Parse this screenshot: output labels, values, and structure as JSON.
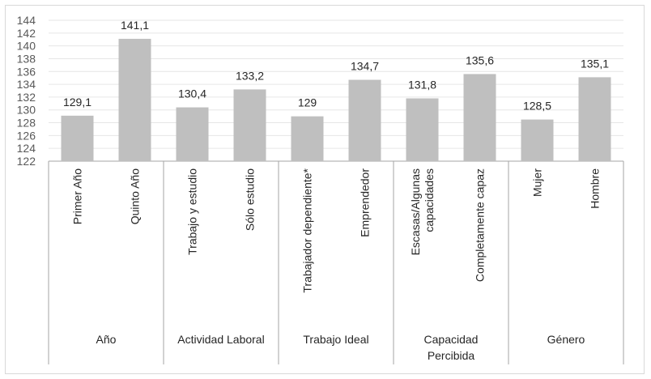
{
  "chart_data": {
    "type": "bar",
    "ylim": [
      122,
      144
    ],
    "y_ticks": [
      122,
      124,
      126,
      128,
      130,
      132,
      134,
      136,
      138,
      140,
      142,
      144
    ],
    "grid": true,
    "bar_color": "#bfbfbf",
    "groups": [
      {
        "name": "Año",
        "lines": [
          "Año"
        ],
        "categories": [
          {
            "label": [
              "Primer Año"
            ],
            "value": 129.1,
            "value_label": "129,1"
          },
          {
            "label": [
              "Quinto Año"
            ],
            "value": 141.1,
            "value_label": "141,1"
          }
        ]
      },
      {
        "name": "Actividad Laboral",
        "lines": [
          "Actividad Laboral"
        ],
        "categories": [
          {
            "label": [
              "Trabajo y estudio"
            ],
            "value": 130.4,
            "value_label": "130,4"
          },
          {
            "label": [
              "Sólo estudio"
            ],
            "value": 133.2,
            "value_label": "133,2"
          }
        ]
      },
      {
        "name": "Trabajo Ideal",
        "lines": [
          "Trabajo Ideal"
        ],
        "categories": [
          {
            "label": [
              "Trabajador dependiente*"
            ],
            "value": 129,
            "value_label": "129"
          },
          {
            "label": [
              "Emprendedor"
            ],
            "value": 134.7,
            "value_label": "134,7"
          }
        ]
      },
      {
        "name": "Capacidad Percibida",
        "lines": [
          "Capacidad",
          "Percibida"
        ],
        "categories": [
          {
            "label": [
              "Escasas/Algunas",
              "capacidades"
            ],
            "value": 131.8,
            "value_label": "131,8"
          },
          {
            "label": [
              "Completamente capaz"
            ],
            "value": 135.6,
            "value_label": "135,6"
          }
        ]
      },
      {
        "name": "Género",
        "lines": [
          "Género"
        ],
        "categories": [
          {
            "label": [
              "Mujer"
            ],
            "value": 128.5,
            "value_label": "128,5"
          },
          {
            "label": [
              "Hombre"
            ],
            "value": 135.1,
            "value_label": "135,1"
          }
        ]
      }
    ]
  }
}
